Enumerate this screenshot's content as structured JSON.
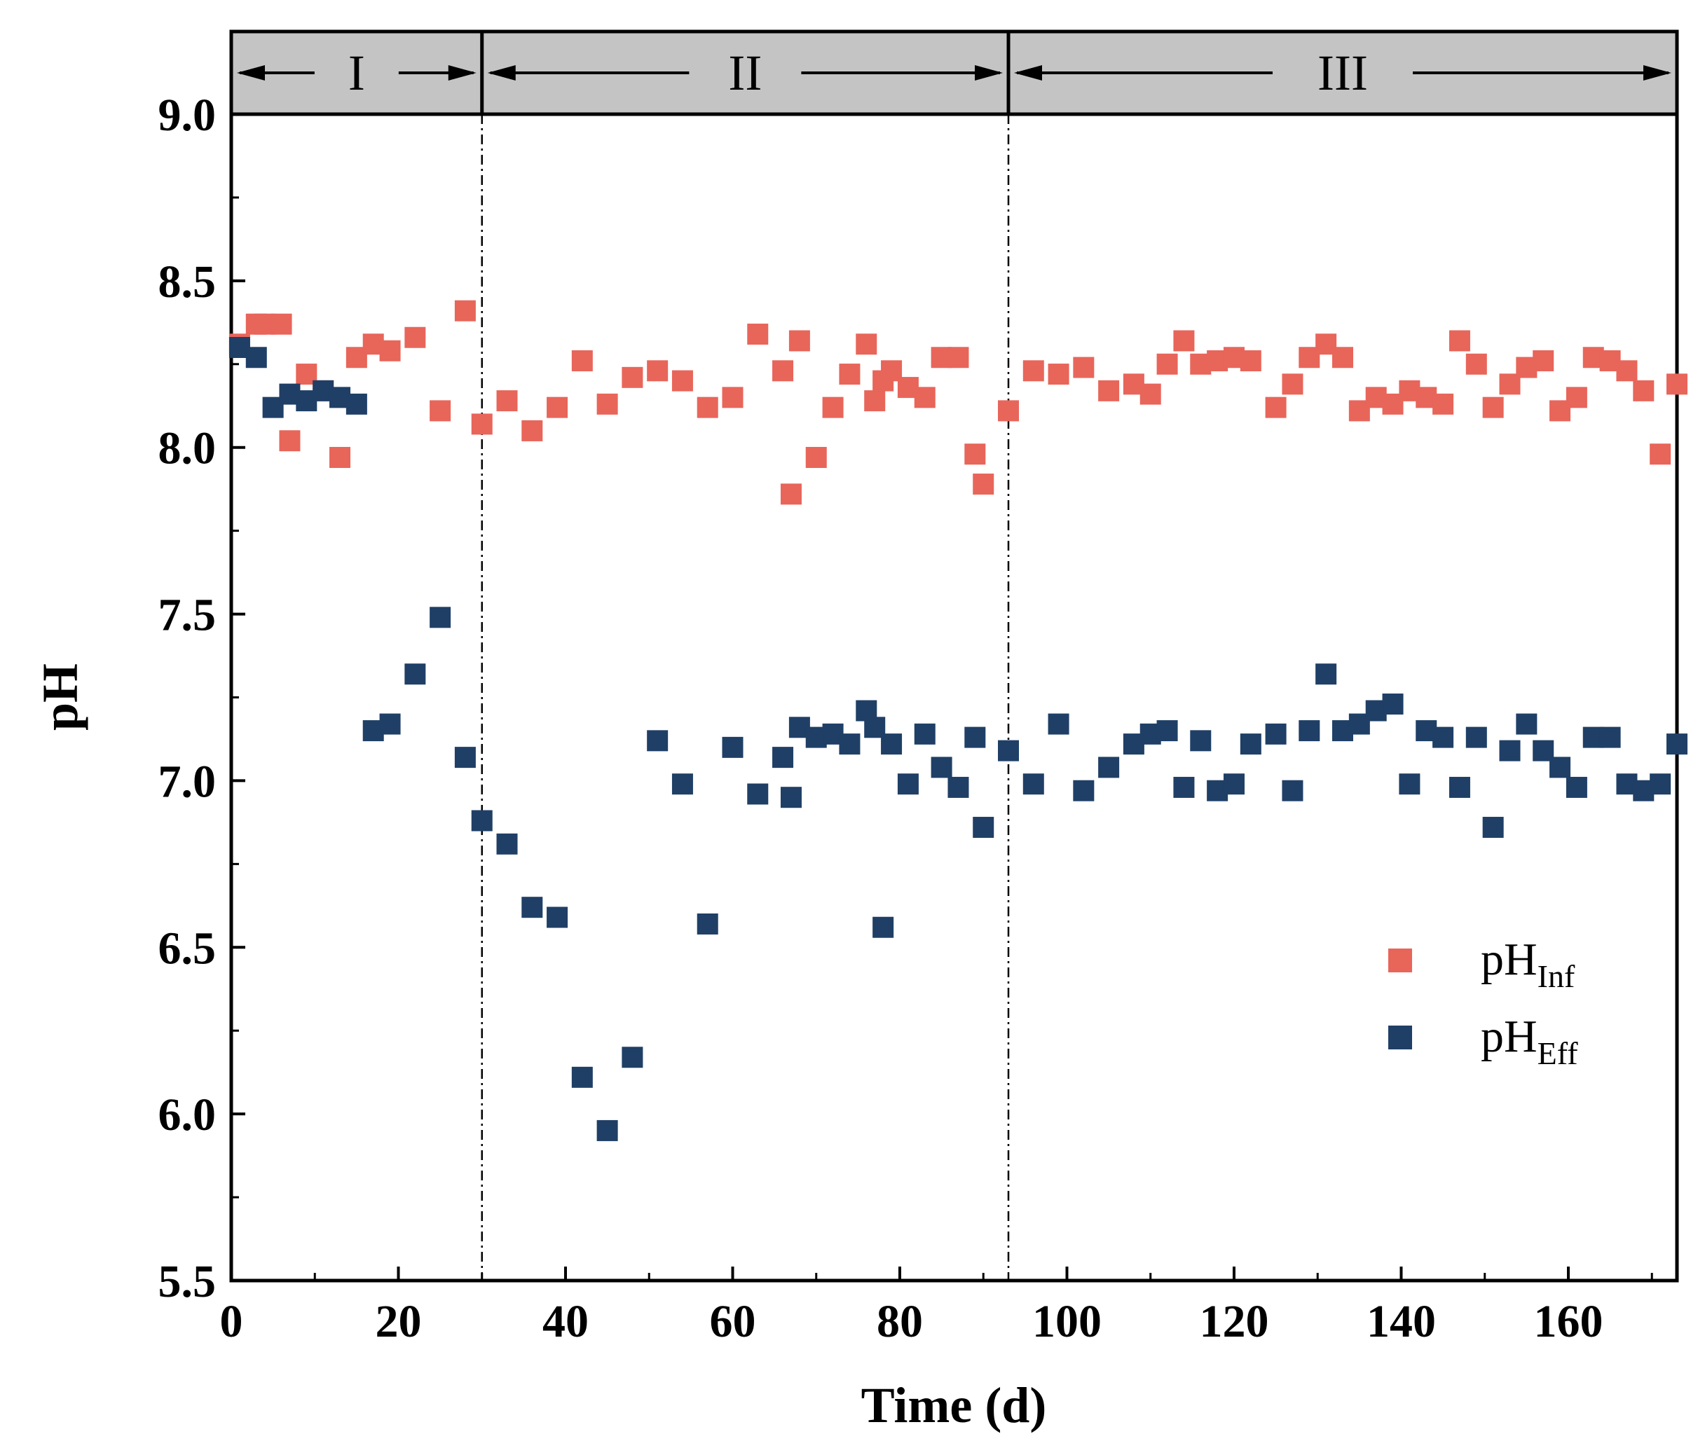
{
  "chart_data": {
    "type": "scatter",
    "xlabel": "Time (d)",
    "ylabel": "pH",
    "xlim": [
      0,
      173
    ],
    "ylim": [
      5.5,
      9.0
    ],
    "x_ticks": [
      "0",
      "20",
      "40",
      "60",
      "80",
      "100",
      "120",
      "140",
      "160"
    ],
    "x_tick_values": [
      0,
      20,
      40,
      60,
      80,
      100,
      120,
      140,
      160
    ],
    "y_ticks": [
      "5.5",
      "6.0",
      "6.5",
      "7.0",
      "7.5",
      "8.0",
      "8.5",
      "9.0"
    ],
    "y_tick_values": [
      5.5,
      6.0,
      6.5,
      7.0,
      7.5,
      8.0,
      8.5,
      9.0
    ],
    "grid": false,
    "legend_position": "bottom-right",
    "phases": [
      {
        "label": "I",
        "start": 0,
        "end": 30
      },
      {
        "label": "II",
        "start": 30,
        "end": 93
      },
      {
        "label": "III",
        "start": 93,
        "end": 173
      }
    ],
    "series": [
      {
        "name": "pH",
        "subscript": "Inf",
        "color": "#e8655a",
        "points": [
          [
            1,
            8.31
          ],
          [
            3,
            8.37
          ],
          [
            4,
            8.37
          ],
          [
            6,
            8.37
          ],
          [
            7,
            8.02
          ],
          [
            9,
            8.22
          ],
          [
            11,
            8.17
          ],
          [
            13,
            7.97
          ],
          [
            15,
            8.27
          ],
          [
            17,
            8.31
          ],
          [
            19,
            8.29
          ],
          [
            22,
            8.33
          ],
          [
            25,
            8.11
          ],
          [
            28,
            8.41
          ],
          [
            30,
            8.07
          ],
          [
            33,
            8.14
          ],
          [
            36,
            8.05
          ],
          [
            39,
            8.12
          ],
          [
            42,
            8.26
          ],
          [
            45,
            8.13
          ],
          [
            48,
            8.21
          ],
          [
            51,
            8.23
          ],
          [
            54,
            8.2
          ],
          [
            57,
            8.12
          ],
          [
            60,
            8.15
          ],
          [
            63,
            8.34
          ],
          [
            66,
            8.23
          ],
          [
            67,
            7.86
          ],
          [
            68,
            8.32
          ],
          [
            70,
            7.97
          ],
          [
            72,
            8.12
          ],
          [
            74,
            8.22
          ],
          [
            76,
            8.31
          ],
          [
            77,
            8.14
          ],
          [
            78,
            8.2
          ],
          [
            79,
            8.23
          ],
          [
            81,
            8.18
          ],
          [
            83,
            8.15
          ],
          [
            85,
            8.27
          ],
          [
            87,
            8.27
          ],
          [
            89,
            7.98
          ],
          [
            90,
            7.89
          ],
          [
            93,
            8.11
          ],
          [
            96,
            8.23
          ],
          [
            99,
            8.22
          ],
          [
            102,
            8.24
          ],
          [
            105,
            8.17
          ],
          [
            108,
            8.19
          ],
          [
            110,
            8.16
          ],
          [
            112,
            8.25
          ],
          [
            114,
            8.32
          ],
          [
            116,
            8.25
          ],
          [
            118,
            8.26
          ],
          [
            120,
            8.27
          ],
          [
            122,
            8.26
          ],
          [
            125,
            8.12
          ],
          [
            127,
            8.19
          ],
          [
            129,
            8.27
          ],
          [
            131,
            8.31
          ],
          [
            133,
            8.27
          ],
          [
            135,
            8.11
          ],
          [
            137,
            8.15
          ],
          [
            139,
            8.13
          ],
          [
            141,
            8.17
          ],
          [
            143,
            8.15
          ],
          [
            145,
            8.13
          ],
          [
            147,
            8.32
          ],
          [
            149,
            8.25
          ],
          [
            151,
            8.12
          ],
          [
            153,
            8.19
          ],
          [
            155,
            8.24
          ],
          [
            157,
            8.26
          ],
          [
            159,
            8.11
          ],
          [
            161,
            8.15
          ],
          [
            163,
            8.27
          ],
          [
            165,
            8.26
          ],
          [
            167,
            8.23
          ],
          [
            169,
            8.17
          ],
          [
            171,
            7.98
          ],
          [
            173,
            8.19
          ]
        ]
      },
      {
        "name": "pH",
        "subscript": "Eff",
        "color": "#1f3f66",
        "points": [
          [
            1,
            8.3
          ],
          [
            3,
            8.27
          ],
          [
            5,
            8.12
          ],
          [
            7,
            8.16
          ],
          [
            9,
            8.14
          ],
          [
            11,
            8.17
          ],
          [
            13,
            8.15
          ],
          [
            15,
            8.13
          ],
          [
            17,
            7.15
          ],
          [
            19,
            7.17
          ],
          [
            22,
            7.32
          ],
          [
            25,
            7.49
          ],
          [
            28,
            7.07
          ],
          [
            30,
            6.88
          ],
          [
            33,
            6.81
          ],
          [
            36,
            6.62
          ],
          [
            39,
            6.59
          ],
          [
            42,
            6.11
          ],
          [
            45,
            5.95
          ],
          [
            48,
            6.17
          ],
          [
            51,
            7.12
          ],
          [
            54,
            6.99
          ],
          [
            57,
            6.57
          ],
          [
            60,
            7.1
          ],
          [
            63,
            6.96
          ],
          [
            66,
            7.07
          ],
          [
            67,
            6.95
          ],
          [
            68,
            7.16
          ],
          [
            70,
            7.13
          ],
          [
            72,
            7.14
          ],
          [
            74,
            7.11
          ],
          [
            76,
            7.21
          ],
          [
            77,
            7.16
          ],
          [
            78,
            6.56
          ],
          [
            79,
            7.11
          ],
          [
            81,
            6.99
          ],
          [
            83,
            7.14
          ],
          [
            85,
            7.04
          ],
          [
            87,
            6.98
          ],
          [
            89,
            7.13
          ],
          [
            90,
            6.86
          ],
          [
            93,
            7.09
          ],
          [
            96,
            6.99
          ],
          [
            99,
            7.17
          ],
          [
            102,
            6.97
          ],
          [
            105,
            7.04
          ],
          [
            108,
            7.11
          ],
          [
            110,
            7.14
          ],
          [
            112,
            7.15
          ],
          [
            114,
            6.98
          ],
          [
            116,
            7.12
          ],
          [
            118,
            6.97
          ],
          [
            120,
            6.99
          ],
          [
            122,
            7.11
          ],
          [
            125,
            7.14
          ],
          [
            127,
            6.97
          ],
          [
            129,
            7.15
          ],
          [
            131,
            7.32
          ],
          [
            133,
            7.15
          ],
          [
            135,
            7.17
          ],
          [
            137,
            7.21
          ],
          [
            139,
            7.23
          ],
          [
            141,
            6.99
          ],
          [
            143,
            7.15
          ],
          [
            145,
            7.13
          ],
          [
            147,
            6.98
          ],
          [
            149,
            7.13
          ],
          [
            151,
            6.86
          ],
          [
            153,
            7.09
          ],
          [
            155,
            7.17
          ],
          [
            157,
            7.09
          ],
          [
            159,
            7.04
          ],
          [
            161,
            6.98
          ],
          [
            163,
            7.13
          ],
          [
            165,
            7.13
          ],
          [
            167,
            6.99
          ],
          [
            169,
            6.97
          ],
          [
            171,
            6.99
          ],
          [
            173,
            7.11
          ]
        ]
      }
    ]
  }
}
